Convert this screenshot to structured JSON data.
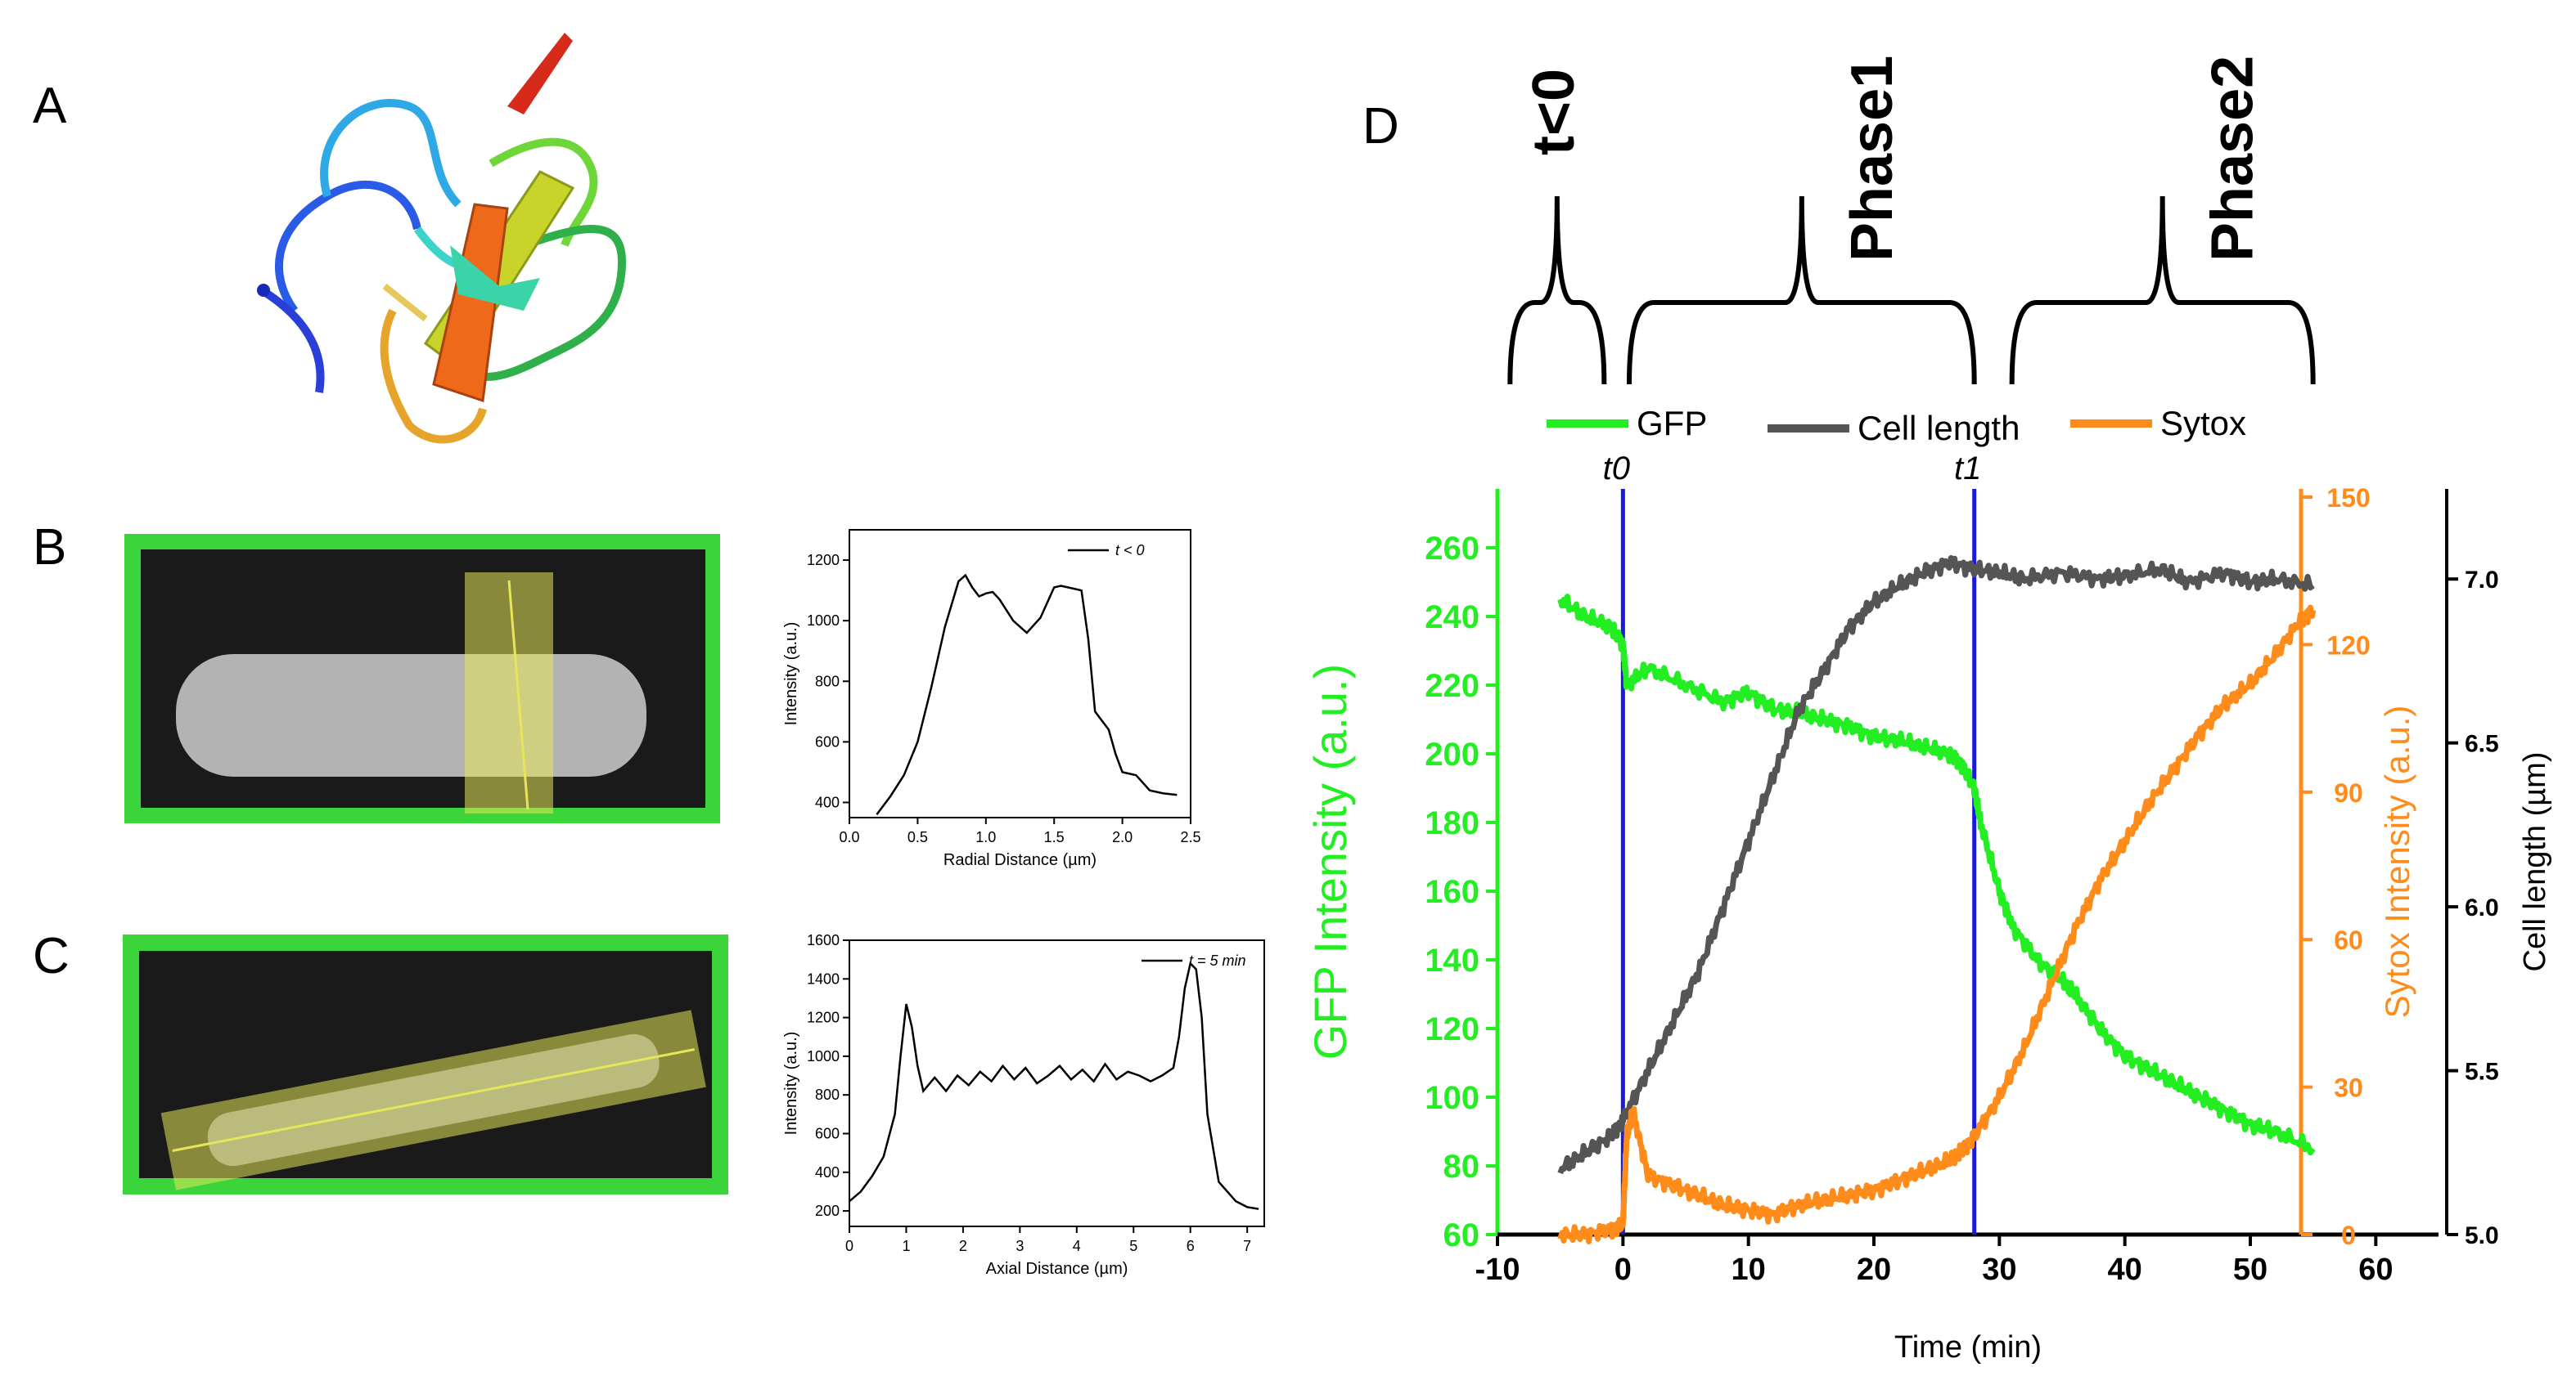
{
  "panel_labels": {
    "A": "A",
    "B": "B",
    "C": "C",
    "D": "D"
  },
  "colors": {
    "gfp": "#22ee22",
    "cell_length": "#555555",
    "sytox": "#ff8c1a",
    "vline": "#1a1adc",
    "frame_green": "#3bd43b",
    "roi_yellow": "#e6e65a"
  },
  "panel_a": {
    "description_icon": "protein-ribbon-structure"
  },
  "chart_data": [
    {
      "id": "B",
      "type": "line",
      "title": "",
      "xlabel": "Radial Distance (µm)",
      "ylabel": "Intensity (a.u.)",
      "xlim": [
        0,
        2.5
      ],
      "ylim": [
        350,
        1300
      ],
      "xticks": [
        0.0,
        0.5,
        1.0,
        1.5,
        2.0,
        2.5
      ],
      "xtick_labels": [
        "0.0",
        "0.5",
        "1.0",
        "1.5",
        "2.0",
        "2.5"
      ],
      "yticks": [
        400,
        600,
        800,
        1000,
        1200
      ],
      "ytick_labels": [
        "400",
        "600",
        "800",
        "1000",
        "1200"
      ],
      "legend": "t < 0",
      "legend_position": "top-right",
      "series": [
        {
          "name": "t < 0",
          "x": [
            0.2,
            0.3,
            0.4,
            0.5,
            0.6,
            0.7,
            0.8,
            0.85,
            0.9,
            0.95,
            1.0,
            1.05,
            1.1,
            1.2,
            1.3,
            1.4,
            1.5,
            1.55,
            1.6,
            1.7,
            1.75,
            1.8,
            1.9,
            1.95,
            2.0,
            2.1,
            2.2,
            2.3,
            2.4
          ],
          "y": [
            360,
            420,
            490,
            600,
            780,
            980,
            1130,
            1150,
            1110,
            1080,
            1090,
            1095,
            1070,
            1000,
            960,
            1010,
            1110,
            1115,
            1110,
            1100,
            940,
            700,
            640,
            560,
            500,
            490,
            440,
            430,
            425
          ]
        }
      ]
    },
    {
      "id": "C",
      "type": "line",
      "title": "",
      "xlabel": "Axial Distance (µm)",
      "ylabel": "Intensity (a.u.)",
      "xlim": [
        0,
        7.3
      ],
      "ylim": [
        120,
        1600
      ],
      "xticks": [
        0,
        1,
        2,
        3,
        4,
        5,
        6,
        7
      ],
      "xtick_labels": [
        "0",
        "1",
        "2",
        "3",
        "4",
        "5",
        "6",
        "7"
      ],
      "yticks": [
        200,
        400,
        600,
        800,
        1000,
        1200,
        1400,
        1600
      ],
      "ytick_labels": [
        "200",
        "400",
        "600",
        "800",
        "1000",
        "1200",
        "1400",
        "1600"
      ],
      "legend": "t = 5 min",
      "legend_position": "top-right",
      "series": [
        {
          "name": "t = 5 min",
          "x": [
            0,
            0.2,
            0.4,
            0.6,
            0.8,
            0.9,
            1.0,
            1.1,
            1.2,
            1.3,
            1.5,
            1.7,
            1.9,
            2.1,
            2.3,
            2.5,
            2.7,
            2.9,
            3.1,
            3.3,
            3.5,
            3.7,
            3.9,
            4.1,
            4.3,
            4.5,
            4.7,
            4.9,
            5.1,
            5.3,
            5.5,
            5.7,
            5.8,
            5.9,
            6.0,
            6.1,
            6.2,
            6.3,
            6.5,
            6.8,
            7.0,
            7.2
          ],
          "y": [
            250,
            300,
            380,
            480,
            700,
            1000,
            1270,
            1150,
            950,
            820,
            890,
            820,
            900,
            850,
            920,
            870,
            950,
            880,
            940,
            860,
            900,
            950,
            880,
            930,
            870,
            960,
            880,
            920,
            900,
            870,
            900,
            940,
            1100,
            1350,
            1480,
            1450,
            1200,
            700,
            350,
            250,
            220,
            210
          ]
        }
      ]
    },
    {
      "id": "D",
      "type": "line",
      "title": "",
      "xlabel": "Time (min)",
      "xlim": [
        -10,
        65
      ],
      "xticks": [
        -10,
        0,
        10,
        20,
        30,
        40,
        50,
        60
      ],
      "xtick_labels": [
        "-10",
        "0",
        "10",
        "20",
        "30",
        "40",
        "50",
        "60"
      ],
      "axes": {
        "left": {
          "label": "GFP Intensity (a.u.)",
          "range": [
            60,
            270
          ],
          "ticks": [
            60,
            80,
            100,
            120,
            140,
            160,
            180,
            200,
            220,
            240,
            260
          ],
          "tick_labels": [
            "60",
            "80",
            "100",
            "120",
            "140",
            "160",
            "180",
            "200",
            "220",
            "240",
            "260"
          ]
        },
        "right1": {
          "label": "Sytox Intensity (a.u.)",
          "range": [
            0,
            150
          ],
          "ticks": [
            0,
            30,
            60,
            90,
            120,
            150
          ],
          "tick_labels": [
            "0",
            "30",
            "60",
            "90",
            "120",
            "150"
          ]
        },
        "right2": {
          "label": "Cell length (µm)",
          "range": [
            5.0,
            7.25
          ],
          "ticks": [
            5.0,
            5.5,
            6.0,
            6.5,
            7.0
          ],
          "tick_labels": [
            "5.0",
            "5.5",
            "6.0",
            "6.5",
            "7.0"
          ]
        }
      },
      "legend": [
        "GFP",
        "Cell length",
        "Sytox"
      ],
      "legend_position": "top",
      "vlines": [
        {
          "x": 0,
          "label": "t0"
        },
        {
          "x": 28,
          "label": "t1"
        }
      ],
      "phases": [
        {
          "label": "t<0",
          "x_start": -9,
          "x_end": -1.5
        },
        {
          "label": "Phase1",
          "x_start": 0.5,
          "x_end": 28
        },
        {
          "label": "Phase2",
          "x_start": 31,
          "x_end": 55
        }
      ],
      "series": [
        {
          "name": "GFP",
          "axis": "left",
          "x": [
            -5,
            -3,
            -1,
            0,
            0.3,
            2,
            5,
            8,
            10,
            12,
            14,
            16,
            18,
            20,
            22,
            24,
            26,
            27,
            28,
            28.5,
            30,
            31,
            33,
            35,
            36,
            38,
            40,
            42,
            44,
            46,
            48,
            50,
            52,
            55
          ],
          "y": [
            245,
            240,
            237,
            232,
            220,
            225,
            220,
            215,
            218,
            213,
            212,
            210,
            208,
            205,
            204,
            202,
            200,
            197,
            190,
            180,
            160,
            150,
            140,
            134,
            130,
            120,
            112,
            108,
            104,
            100,
            96,
            92,
            90,
            85
          ]
        },
        {
          "name": "Cell length",
          "axis": "right2",
          "x": [
            -5,
            -3,
            -1,
            0,
            2,
            4,
            6,
            8,
            10,
            12,
            14,
            16,
            18,
            20,
            22,
            24,
            26,
            28,
            30,
            32,
            35,
            38,
            40,
            43,
            45,
            48,
            50,
            52,
            55
          ],
          "y": [
            5.2,
            5.25,
            5.3,
            5.35,
            5.5,
            5.65,
            5.8,
            6.0,
            6.2,
            6.4,
            6.6,
            6.72,
            6.85,
            6.93,
            6.98,
            7.02,
            7.05,
            7.03,
            7.02,
            7.0,
            7.02,
            7.0,
            7.01,
            7.03,
            6.99,
            7.02,
            6.99,
            7.0,
            6.98
          ]
        },
        {
          "name": "Sytox",
          "axis": "right1",
          "x": [
            -5,
            -3,
            -1,
            0,
            0.3,
            0.8,
            2,
            4,
            6,
            8,
            10,
            12,
            14,
            16,
            18,
            20,
            22,
            24,
            26,
            27,
            28,
            30,
            32,
            34,
            36,
            38,
            40,
            42,
            44,
            46,
            48,
            50,
            52,
            54,
            55
          ],
          "y": [
            0,
            0,
            1,
            2,
            20,
            25,
            12,
            10,
            8,
            6,
            5,
            4,
            6,
            7,
            8,
            9,
            11,
            13,
            15,
            17,
            20,
            28,
            38,
            50,
            62,
            72,
            80,
            88,
            95,
            102,
            108,
            112,
            118,
            125,
            127
          ]
        }
      ]
    }
  ]
}
